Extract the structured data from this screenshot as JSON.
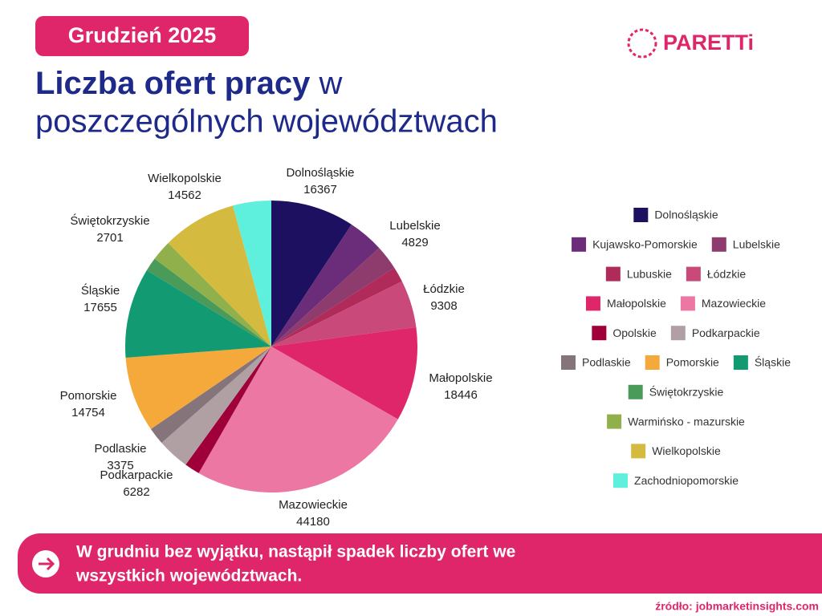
{
  "badge": "Grudzień 2025",
  "brand": "PARETTi",
  "title": {
    "bold": "Liczba ofert pracy",
    "regular": "w",
    "line2": "poszczególnych województwach"
  },
  "chart_data": {
    "type": "pie",
    "categories": [
      "Dolnośląskie",
      "Kujawsko-Pomorskie",
      "Lubelskie",
      "Lubuskie",
      "Łódzkie",
      "Małopolskie",
      "Mazowieckie",
      "Opolskie",
      "Podkarpackie",
      "Podlaskie",
      "Pomorskie",
      "Śląskie",
      "Świętokrzyskie",
      "Warmińsko - mazurskie",
      "Wielkopolskie",
      "Zachodniopomorskie"
    ],
    "values": [
      16367,
      7000,
      4829,
      3000,
      9308,
      18446,
      44180,
      3000,
      6282,
      3375,
      14754,
      17655,
      2701,
      4000,
      14562,
      7500
    ],
    "colors": [
      "#1e1060",
      "#6b2d7a",
      "#8e3b6e",
      "#b02a5a",
      "#c94a7a",
      "#e0266a",
      "#ec77a3",
      "#a0003a",
      "#b0a0a4",
      "#85757a",
      "#f4a93a",
      "#129a72",
      "#4a9a5a",
      "#8fb04a",
      "#d4bb3f",
      "#5ef0dc"
    ]
  },
  "note": [
    "W grudniu bez wyjątku, nastąpił spadek liczby ofert we",
    "wszystkich  województwach."
  ],
  "source": "źródło: jobmarketinsights.com"
}
